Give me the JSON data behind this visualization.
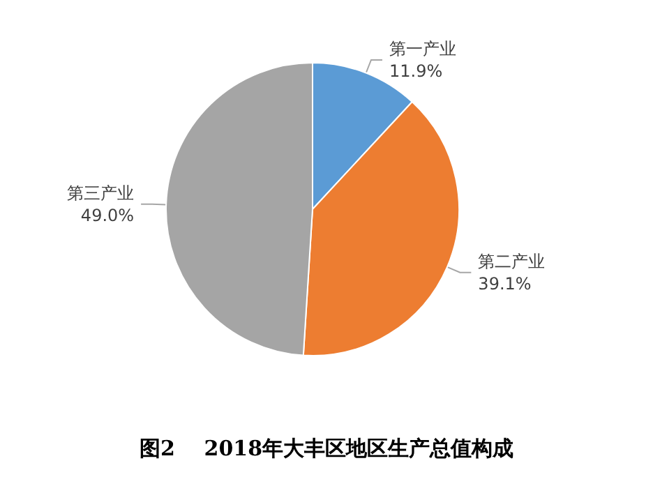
{
  "chart_data": {
    "type": "pie",
    "title": "图2    2018年大丰区地区生产总值构成",
    "categories": [
      "第一产业",
      "第二产业",
      "第三产业"
    ],
    "values": [
      11.9,
      39.1,
      49.0
    ],
    "value_labels": [
      "11.9%",
      "39.1%",
      "49.0%"
    ],
    "colors": [
      "#5b9bd5",
      "#ed7d31",
      "#a5a5a5"
    ],
    "legend": false
  }
}
